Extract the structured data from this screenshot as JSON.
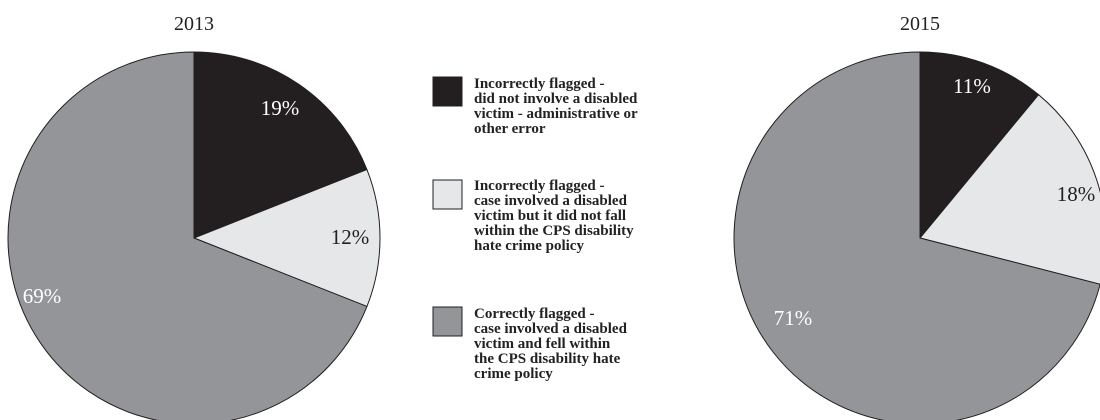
{
  "chart_data": [
    {
      "type": "pie",
      "title": "2013",
      "categories": [
        "Incorrectly flagged - did not involve a disabled victim - administrative or other error",
        "Incorrectly flagged - case involved a disabled victim but it did not fall within the CPS disability hate crime policy",
        "Correctly flagged - case involved a disabled victim and fell within the CPS disability hate crime policy"
      ],
      "values": [
        19,
        12,
        69
      ],
      "labels": [
        "19%",
        "12%",
        "69%"
      ],
      "colors": [
        "#231f20",
        "#e6e7e8",
        "#939598"
      ],
      "label_colors": [
        "#ffffff",
        "#222222",
        "#ffffff"
      ]
    },
    {
      "type": "pie",
      "title": "2015",
      "categories": [
        "Incorrectly flagged - did not involve a disabled victim - administrative or other error",
        "Incorrectly flagged - case involved a disabled victim but it did not fall within the CPS disability hate crime policy",
        "Correctly flagged - case involved a disabled victim and fell within the CPS disability hate crime policy"
      ],
      "values": [
        11,
        18,
        71
      ],
      "labels": [
        "11%",
        "18%",
        "71%"
      ],
      "colors": [
        "#231f20",
        "#e6e7e8",
        "#939598"
      ],
      "label_colors": [
        "#ffffff",
        "#222222",
        "#ffffff"
      ]
    }
  ],
  "legend": {
    "placement": "center",
    "items": [
      {
        "lines": [
          "Incorrectly flagged -",
          "did not involve a disabled",
          "victim - administrative or",
          "other error"
        ],
        "color": "#231f20"
      },
      {
        "lines": [
          "Incorrectly flagged -",
          "case involved a disabled",
          "victim but it did not fall",
          "within the CPS disability",
          "hate crime policy"
        ],
        "color": "#e6e7e8"
      },
      {
        "lines": [
          "Correctly flagged -",
          "case involved a disabled",
          "victim and fell within",
          "the CPS disability hate",
          "crime policy"
        ],
        "color": "#939598"
      }
    ]
  }
}
